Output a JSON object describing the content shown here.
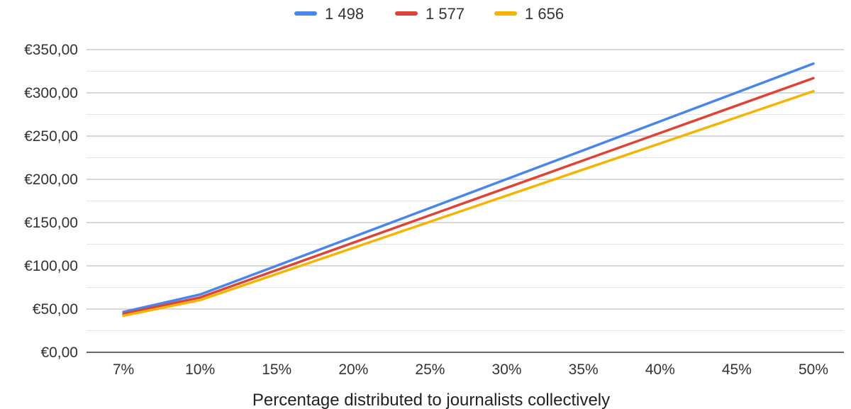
{
  "chart_data": {
    "type": "line",
    "title": "",
    "xlabel": "Percentage distributed to journalists collectively",
    "ylabel": "",
    "categories": [
      "7%",
      "10%",
      "15%",
      "20%",
      "25%",
      "30%",
      "35%",
      "40%",
      "45%",
      "50%"
    ],
    "y_ticks": [
      "€0,00",
      "€50,00",
      "€100,00",
      "€150,00",
      "€200,00",
      "€250,00",
      "€300,00",
      "€350,00"
    ],
    "ylim": [
      0,
      350
    ],
    "grid": true,
    "legend_position": "top-center",
    "series": [
      {
        "name": "1 498",
        "color": "#4a86e8",
        "values": [
          46.7,
          66.8,
          100.1,
          133.5,
          166.9,
          200.3,
          233.6,
          267.0,
          300.4,
          333.8
        ]
      },
      {
        "name": "1 577",
        "color": "#db4437",
        "values": [
          44.4,
          63.4,
          95.1,
          126.8,
          158.5,
          190.2,
          221.9,
          253.6,
          285.3,
          317.0
        ]
      },
      {
        "name": "1 656",
        "color": "#f4b400",
        "values": [
          42.3,
          60.4,
          90.6,
          120.8,
          151.0,
          181.2,
          211.4,
          241.5,
          271.7,
          301.9
        ]
      }
    ]
  }
}
